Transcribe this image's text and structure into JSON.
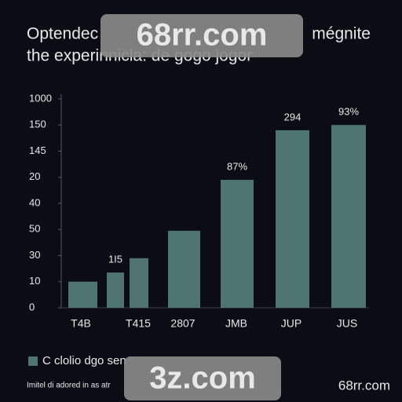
{
  "chart_data": {
    "type": "bar",
    "title": [
      "Optendec",
      "mégnite",
      "the experinnicla: de gogo jogor"
    ],
    "categories": [
      "T4B",
      null,
      "T415",
      "2807",
      "JMB",
      "JUP",
      "JUS"
    ],
    "series": [
      {
        "name": "C clolio dgo sen",
        "color": "#4d7471",
        "values": [
          1.0,
          1.35,
          1.9,
          2.95,
          4.9,
          6.8,
          7.0
        ]
      }
    ],
    "annotations": [
      "1I5",
      "87%",
      "294",
      "93%"
    ],
    "ylim": [
      0,
      8.2
    ],
    "yticks": [
      0,
      {
        "value": 1,
        "label": "10"
      },
      {
        "value": 2,
        "label": "30"
      },
      {
        "value": 3,
        "label": "50"
      },
      {
        "value": 4,
        "label": "40"
      },
      {
        "value": 5,
        "label": "20"
      },
      {
        "value": 6,
        "label": "145"
      },
      {
        "value": 7,
        "label": "150"
      },
      {
        "value": 8,
        "label": "1000"
      }
    ],
    "grid": false,
    "note": "Imitel di adored in as atr"
  },
  "watermarks": [
    "68rr.com",
    "3z.com",
    "68rr.com"
  ]
}
